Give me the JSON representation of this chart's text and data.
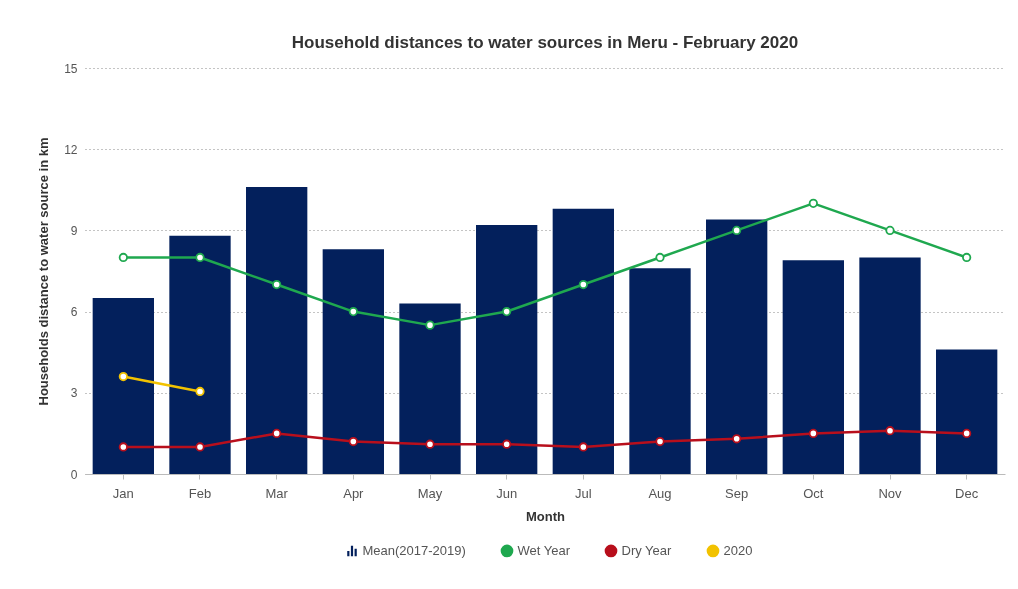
{
  "chart_data": {
    "type": "bar",
    "title": "Household distances to water sources in Meru - February 2020",
    "xlabel": "Month",
    "ylabel": "Households distance to water source in km",
    "categories": [
      "Jan",
      "Feb",
      "Mar",
      "Apr",
      "May",
      "Jun",
      "Jul",
      "Aug",
      "Sep",
      "Oct",
      "Nov",
      "Dec"
    ],
    "series": [
      {
        "name": "Mean(2017-2019)",
        "color": "#03205c",
        "values": [
          6.5,
          8.8,
          10.6,
          8.3,
          6.3,
          9.2,
          9.8,
          7.6,
          9.4,
          7.9,
          8.0,
          4.6
        ]
      },
      {
        "name": "Wet Year",
        "type": "line",
        "color": "#1fa84f",
        "values": [
          8,
          8,
          7,
          6,
          5.5,
          6,
          7,
          8,
          9,
          10,
          9,
          8
        ]
      },
      {
        "name": "Dry Year",
        "type": "line",
        "color": "#b80f1c",
        "values": [
          1.0,
          1.0,
          1.5,
          1.2,
          1.1,
          1.1,
          1.0,
          1.2,
          1.3,
          1.5,
          1.6,
          1.5
        ]
      },
      {
        "name": "2020",
        "type": "line",
        "color": "#f2c200",
        "values": [
          3.6,
          3.05,
          null,
          null,
          null,
          null,
          null,
          null,
          null,
          null,
          null,
          null
        ]
      }
    ],
    "ylim": [
      0,
      15
    ],
    "yticks": [
      0,
      3,
      6,
      9,
      12,
      15
    ],
    "grid": "y",
    "legend": "bottom",
    "marker": "circle",
    "line_style": "solid"
  }
}
